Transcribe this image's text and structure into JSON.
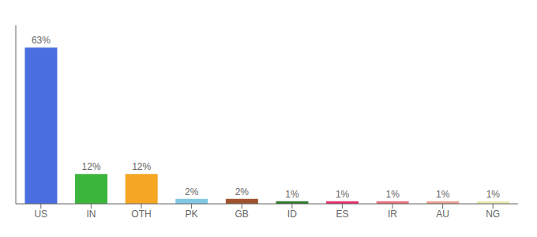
{
  "chart_data": {
    "type": "bar",
    "categories": [
      "US",
      "IN",
      "OTH",
      "PK",
      "GB",
      "ID",
      "ES",
      "IR",
      "AU",
      "NG"
    ],
    "values": [
      63,
      12,
      12,
      2,
      2,
      1,
      1,
      1,
      1,
      1
    ],
    "value_labels": [
      "63%",
      "12%",
      "12%",
      "2%",
      "2%",
      "1%",
      "1%",
      "1%",
      "1%",
      "1%"
    ],
    "colors": [
      "#4a6ee0",
      "#3cb53c",
      "#f5a623",
      "#7ec8e3",
      "#a0522d",
      "#2d7a2d",
      "#e8306e",
      "#e87080",
      "#e8a090",
      "#e8e8b0"
    ],
    "ylim": [
      0,
      72
    ],
    "grid": false,
    "data_labels": true,
    "tick_labels": "x"
  }
}
